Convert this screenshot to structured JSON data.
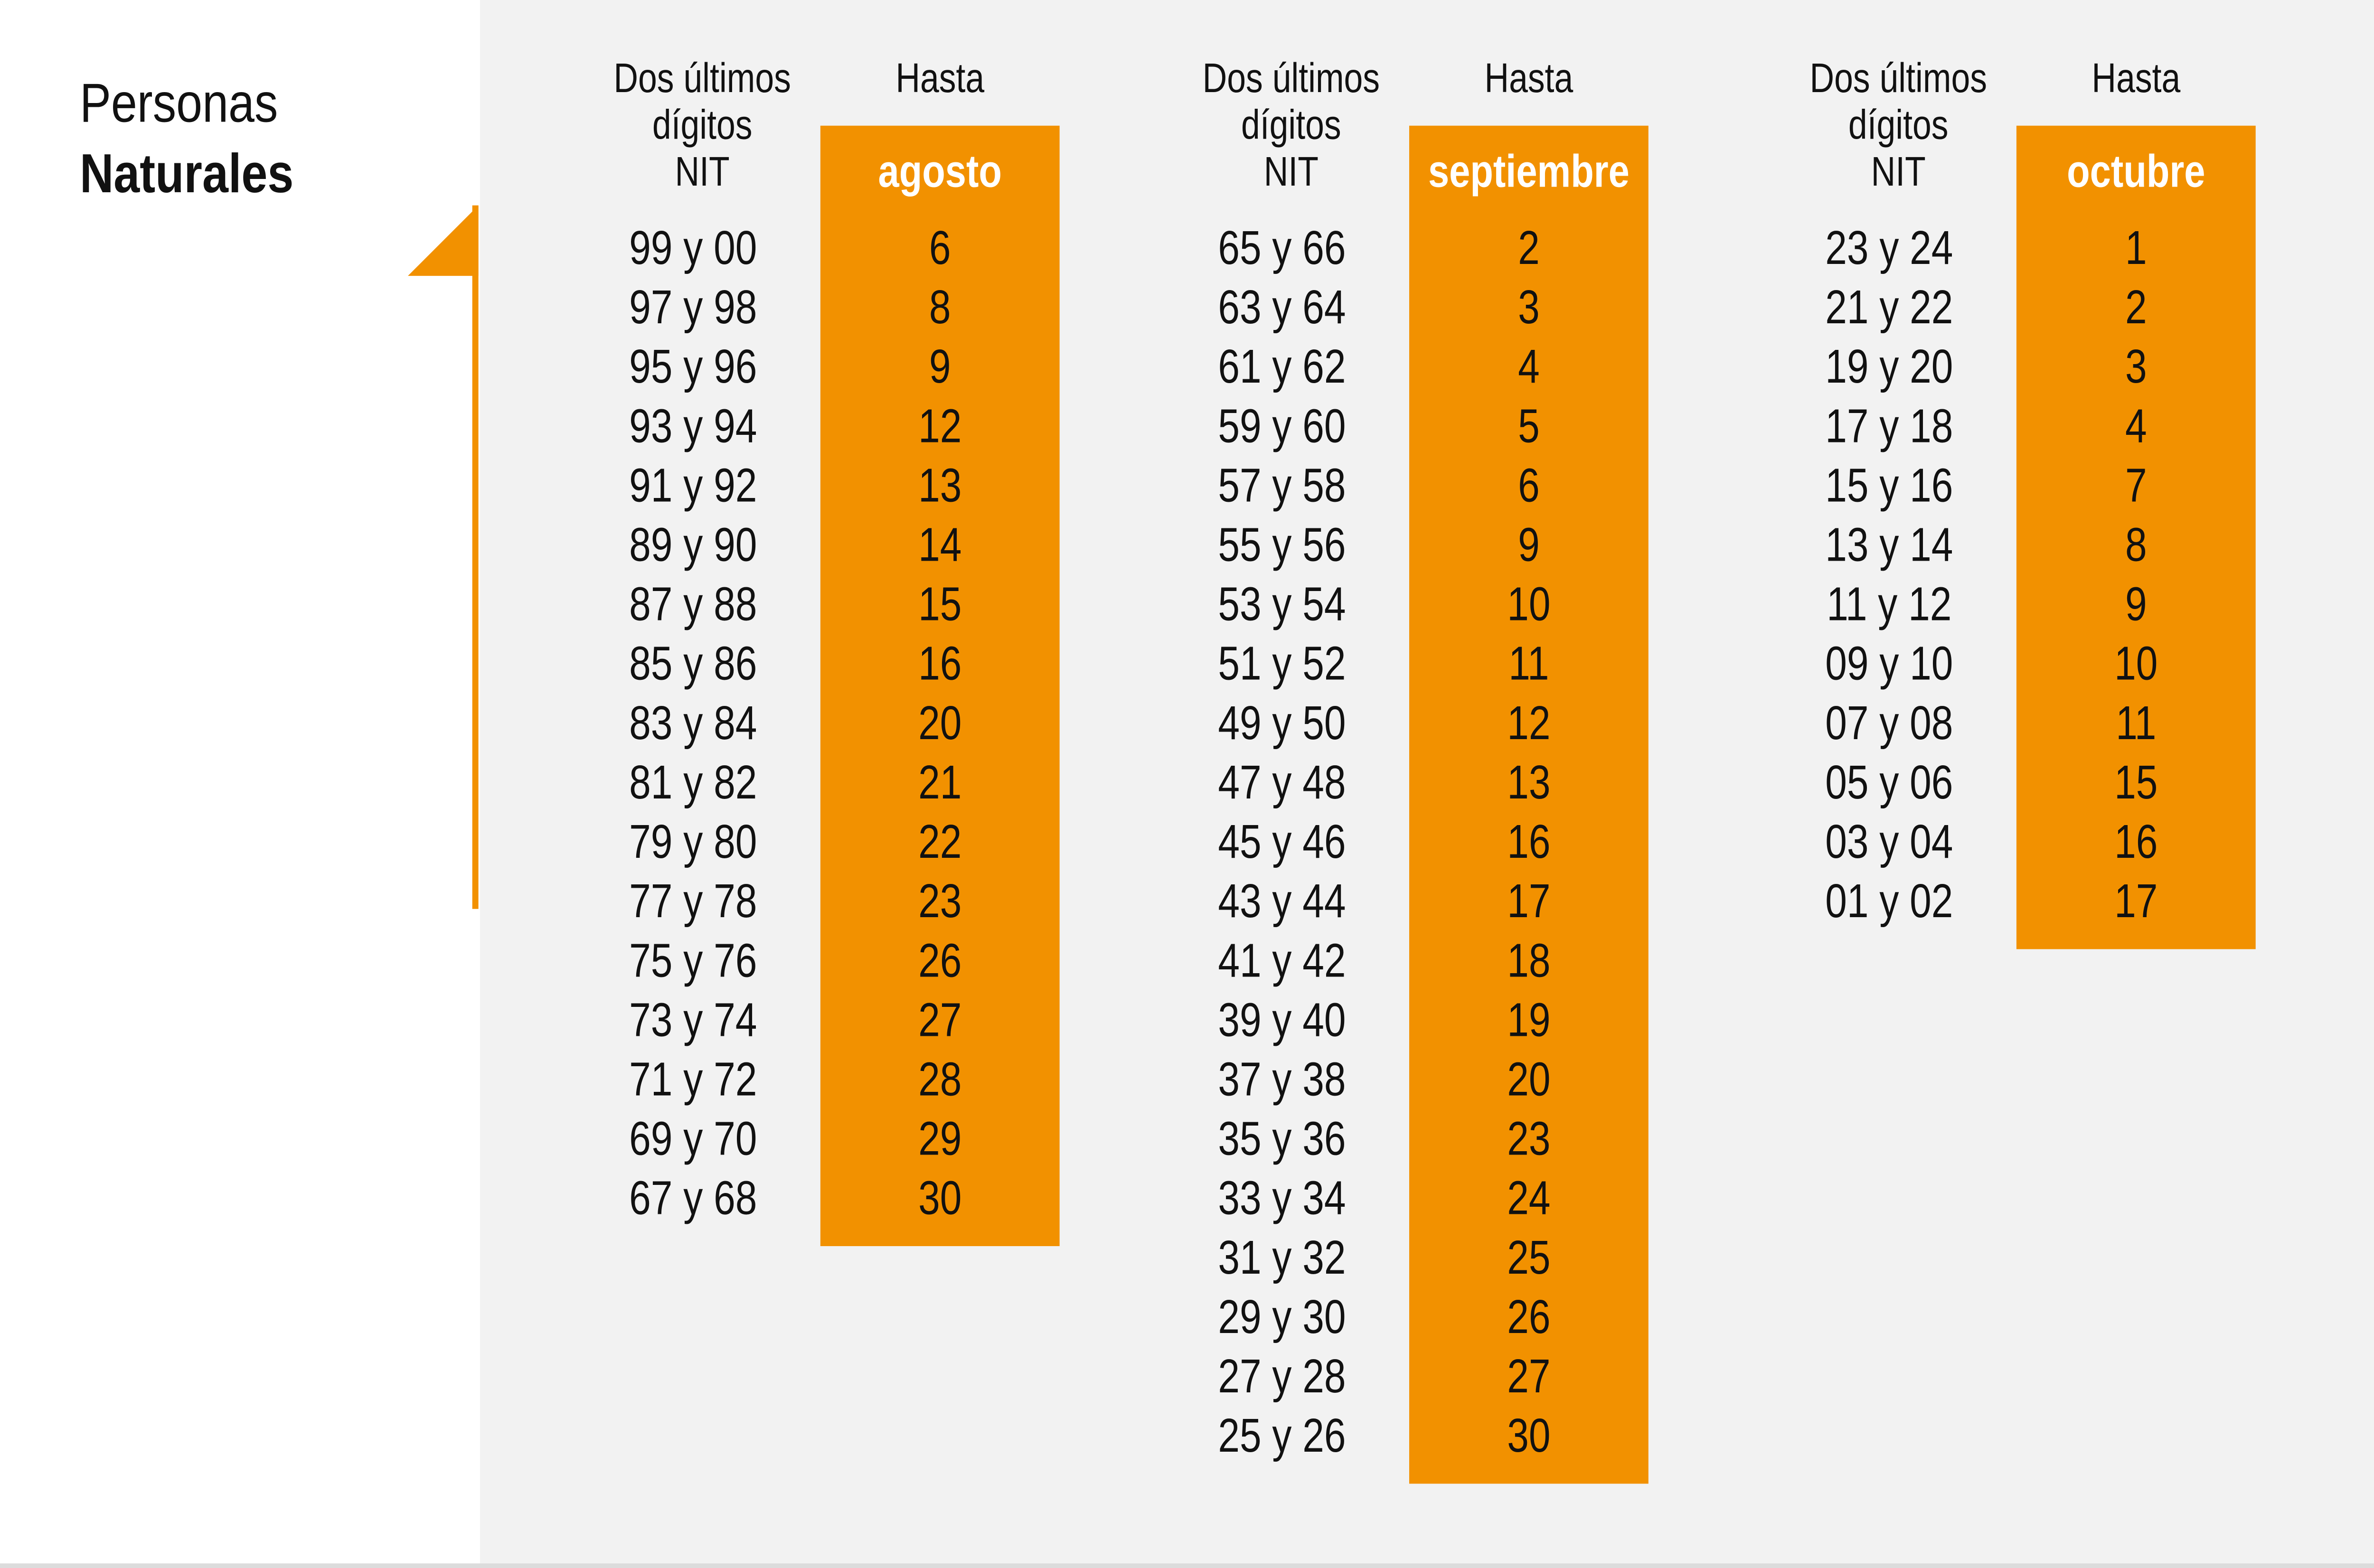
{
  "header": {
    "title_line1": "Personas",
    "title_line2": "Naturales"
  },
  "tables": [
    {
      "digits_header": [
        "Dos últimos",
        "dígitos",
        "NIT"
      ],
      "until_header": "Hasta",
      "month": "agosto",
      "rows": [
        [
          "99 y 00",
          6
        ],
        [
          "97 y 98",
          8
        ],
        [
          "95 y 96",
          9
        ],
        [
          "93 y 94",
          12
        ],
        [
          "91 y 92",
          13
        ],
        [
          "89 y 90",
          14
        ],
        [
          "87 y 88",
          15
        ],
        [
          "85 y 86",
          16
        ],
        [
          "83 y 84",
          20
        ],
        [
          "81 y 82",
          21
        ],
        [
          "79 y 80",
          22
        ],
        [
          "77 y 78",
          23
        ],
        [
          "75 y 76",
          26
        ],
        [
          "73 y 74",
          27
        ],
        [
          "71 y 72",
          28
        ],
        [
          "69 y 70",
          29
        ],
        [
          "67 y 68",
          30
        ]
      ]
    },
    {
      "digits_header": [
        "Dos últimos",
        "dígitos",
        "NIT"
      ],
      "until_header": "Hasta",
      "month": "septiembre",
      "rows": [
        [
          "65 y 66",
          2
        ],
        [
          "63 y 64",
          3
        ],
        [
          "61 y 62",
          4
        ],
        [
          "59 y 60",
          5
        ],
        [
          "57 y 58",
          6
        ],
        [
          "55 y 56",
          9
        ],
        [
          "53 y 54",
          10
        ],
        [
          "51 y 52",
          11
        ],
        [
          "49 y 50",
          12
        ],
        [
          "47 y 48",
          13
        ],
        [
          "45 y 46",
          16
        ],
        [
          "43 y 44",
          17
        ],
        [
          "41 y 42",
          18
        ],
        [
          "39 y 40",
          19
        ],
        [
          "37 y 38",
          20
        ],
        [
          "35 y 36",
          23
        ],
        [
          "33 y 34",
          24
        ],
        [
          "31 y 32",
          25
        ],
        [
          "29 y 30",
          26
        ],
        [
          "27 y 28",
          27
        ],
        [
          "25 y 26",
          30
        ]
      ]
    },
    {
      "digits_header": [
        "Dos últimos",
        "dígitos",
        "NIT"
      ],
      "until_header": "Hasta",
      "month": "octubre",
      "rows": [
        [
          "23 y 24",
          1
        ],
        [
          "21 y 22",
          2
        ],
        [
          "19 y 20",
          3
        ],
        [
          "17 y 18",
          4
        ],
        [
          "15 y 16",
          7
        ],
        [
          "13 y 14",
          8
        ],
        [
          "11 y 12",
          9
        ],
        [
          "09 y 10",
          10
        ],
        [
          "07 y 08",
          11
        ],
        [
          "05 y 06",
          15
        ],
        [
          "03 y 04",
          16
        ],
        [
          "01 y 02",
          17
        ]
      ]
    }
  ]
}
